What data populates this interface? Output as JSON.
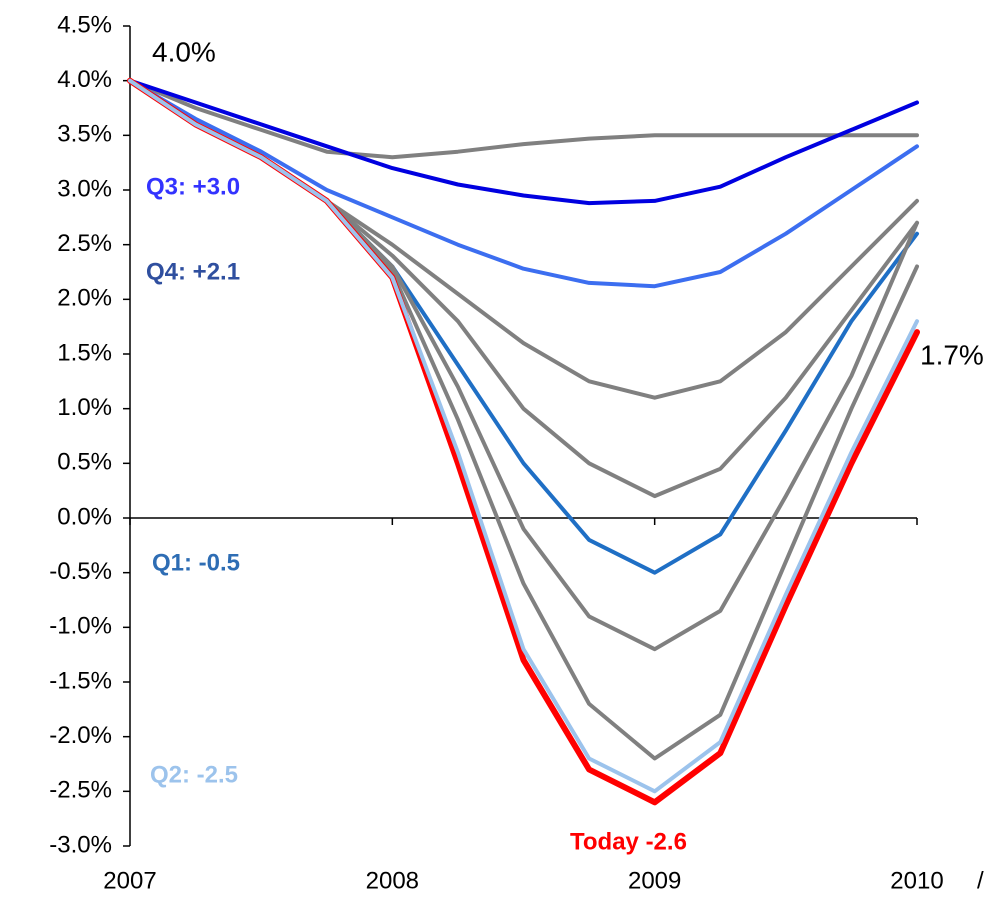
{
  "chart_data": {
    "type": "line",
    "xlim": [
      2007,
      2010
    ],
    "xticks": [
      2007,
      2008,
      2009,
      2010
    ],
    "ylim": [
      -3.0,
      4.5
    ],
    "yticks": [
      {
        "value": -3.0,
        "label": "-3.0%"
      },
      {
        "value": -2.5,
        "label": "-2.5%"
      },
      {
        "value": -2.0,
        "label": "-2.0%"
      },
      {
        "value": -1.5,
        "label": "-1.5%"
      },
      {
        "value": -1.0,
        "label": "-1.0%"
      },
      {
        "value": -0.5,
        "label": "-0.5%"
      },
      {
        "value": 0.0,
        "label": "0.0%"
      },
      {
        "value": 0.5,
        "label": "0.5%"
      },
      {
        "value": 1.0,
        "label": "1.0%"
      },
      {
        "value": 1.5,
        "label": "1.5%"
      },
      {
        "value": 2.0,
        "label": "2.0%"
      },
      {
        "value": 2.5,
        "label": "2.5%"
      },
      {
        "value": 3.0,
        "label": "3.0%"
      },
      {
        "value": 3.5,
        "label": "3.5%"
      },
      {
        "value": 4.0,
        "label": "4.0%"
      },
      {
        "value": 4.5,
        "label": "4.5%"
      }
    ],
    "x": [
      2007,
      2007.25,
      2007.5,
      2007.75,
      2008,
      2008.25,
      2008.5,
      2008.75,
      2009,
      2009.25,
      2009.5,
      2009.75,
      2010
    ],
    "series": [
      {
        "color": "#808080",
        "values": [
          4.0,
          3.75,
          3.55,
          3.35,
          3.3,
          3.35,
          3.42,
          3.47,
          3.5,
          3.5,
          3.5,
          3.5,
          3.5
        ]
      },
      {
        "color": "#0000e0",
        "values": [
          4.0,
          3.8,
          3.6,
          3.4,
          3.2,
          3.05,
          2.95,
          2.88,
          2.9,
          3.03,
          3.3,
          3.55,
          3.8
        ]
      },
      {
        "color": "#3c6ef0",
        "values": [
          4.0,
          3.65,
          3.35,
          3.0,
          2.75,
          2.5,
          2.28,
          2.15,
          2.12,
          2.25,
          2.6,
          3.0,
          3.4
        ]
      },
      {
        "color": "#808080",
        "values": [
          4.0,
          3.6,
          3.3,
          2.9,
          2.5,
          2.05,
          1.6,
          1.25,
          1.1,
          1.25,
          1.7,
          2.3,
          2.9
        ]
      },
      {
        "color": "#808080",
        "values": [
          4.0,
          3.6,
          3.3,
          2.9,
          2.4,
          1.8,
          1.0,
          0.5,
          0.2,
          0.45,
          1.1,
          1.9,
          2.7
        ]
      },
      {
        "color": "#1f6fc5",
        "values": [
          4.0,
          3.6,
          3.3,
          2.9,
          2.3,
          1.4,
          0.5,
          -0.2,
          -0.5,
          -0.15,
          0.8,
          1.8,
          2.6
        ]
      },
      {
        "color": "#808080",
        "values": [
          4.0,
          3.6,
          3.3,
          2.9,
          2.3,
          1.2,
          -0.1,
          -0.9,
          -1.2,
          -0.85,
          0.2,
          1.3,
          2.7
        ]
      },
      {
        "color": "#808080",
        "values": [
          4.0,
          3.6,
          3.3,
          2.9,
          2.25,
          0.9,
          -0.6,
          -1.7,
          -2.2,
          -1.8,
          -0.4,
          1.0,
          2.3
        ]
      },
      {
        "color": "#ff0000",
        "values": [
          4.0,
          3.6,
          3.3,
          2.9,
          2.2,
          0.5,
          -1.3,
          -2.3,
          -2.6,
          -2.15,
          -0.8,
          0.5,
          1.7
        ]
      },
      {
        "color": "#9cc3ec",
        "values": [
          4.0,
          3.6,
          3.3,
          2.9,
          2.2,
          0.6,
          -1.2,
          -2.2,
          -2.5,
          -2.05,
          -0.7,
          0.6,
          1.8
        ]
      }
    ],
    "annotations": [
      {
        "text": "4.0%",
        "color": "#000000"
      },
      {
        "text": "1.7%",
        "color": "#000000"
      },
      {
        "text": "Q3: +3.0",
        "color": "#3333ff"
      },
      {
        "text": "Q4: +2.1",
        "color": "#2f4f9f"
      },
      {
        "text": "Q1: -0.5",
        "color": "#2e6db4"
      },
      {
        "text": "Q2: -2.5",
        "color": "#9cc3ec"
      },
      {
        "text": "Today -2.6",
        "color": "#ff0000"
      },
      {
        "text": "/",
        "color": "#000000"
      }
    ]
  }
}
